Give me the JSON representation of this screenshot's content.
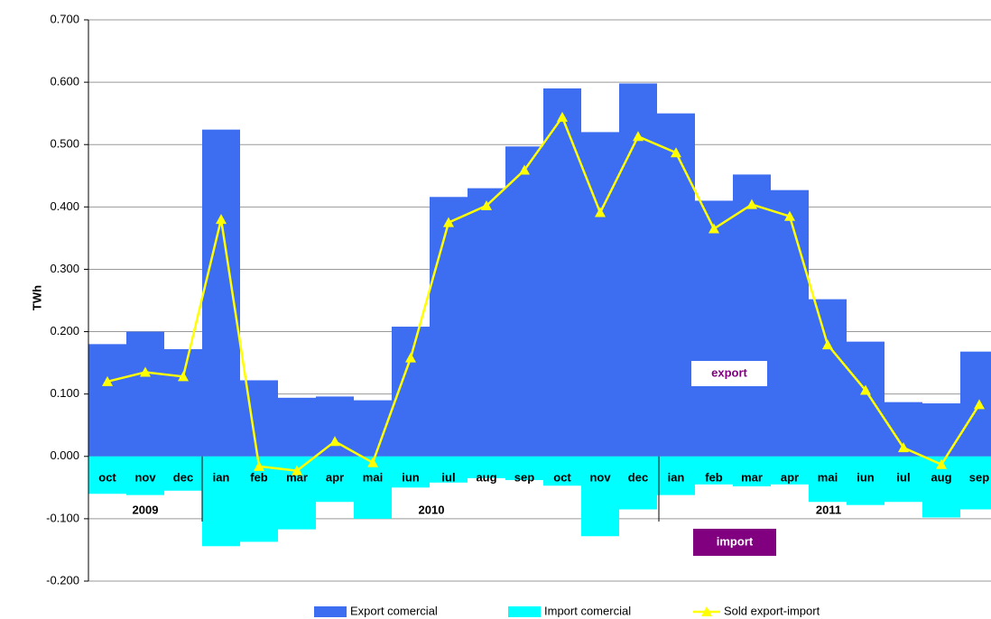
{
  "chart_data": {
    "type": "bar-line",
    "y_label": "TWh",
    "categories": [
      "oct",
      "nov",
      "dec",
      "ian",
      "feb",
      "mar",
      "apr",
      "mai",
      "iun",
      "iul",
      "aug",
      "sep",
      "oct",
      "nov",
      "dec",
      "ian",
      "feb",
      "mar",
      "apr",
      "mai",
      "iun",
      "iul",
      "aug",
      "sep"
    ],
    "year_labels": [
      "2009",
      "2010",
      "2011"
    ],
    "annotations": [
      "export",
      "import"
    ],
    "series": [
      {
        "name": "Export comercial",
        "type": "bar",
        "color": "#3d6ef2",
        "values": [
          0.18,
          0.2,
          0.172,
          0.524,
          0.122,
          0.094,
          0.096,
          0.09,
          0.208,
          0.416,
          0.43,
          0.497,
          0.59,
          0.52,
          0.598,
          0.55,
          0.41,
          0.452,
          0.427,
          0.252,
          0.184,
          0.087,
          0.085,
          0.168
        ]
      },
      {
        "name": "Import comercial",
        "type": "bar",
        "color": "#00ffff",
        "values": [
          -0.06,
          -0.062,
          -0.055,
          -0.144,
          -0.137,
          -0.117,
          -0.073,
          -0.1,
          -0.05,
          -0.042,
          -0.035,
          -0.038,
          -0.047,
          -0.128,
          -0.085,
          -0.062,
          -0.045,
          -0.048,
          -0.045,
          -0.073,
          -0.078,
          -0.073,
          -0.098,
          -0.085
        ]
      },
      {
        "name": "Sold export-import",
        "type": "line",
        "color": "#ffff00",
        "values": [
          0.12,
          0.135,
          0.128,
          0.38,
          -0.016,
          -0.023,
          0.024,
          -0.01,
          0.158,
          0.375,
          0.402,
          0.459,
          0.544,
          0.391,
          0.513,
          0.487,
          0.365,
          0.404,
          0.385,
          0.179,
          0.106,
          0.014,
          -0.013,
          0.083
        ]
      }
    ],
    "ylim": [
      -0.2,
      0.7
    ],
    "yticks": [
      {
        "value": -0.2,
        "label": "-0.200"
      },
      {
        "value": -0.1,
        "label": "-0.100"
      },
      {
        "value": 0,
        "label": "0.000"
      },
      {
        "value": 0.1,
        "label": "0.100"
      },
      {
        "value": 0.2,
        "label": "0.200"
      },
      {
        "value": 0.3,
        "label": "0.300"
      },
      {
        "value": 0.4,
        "label": "0.400"
      },
      {
        "value": 0.5,
        "label": "0.500"
      },
      {
        "value": 0.6,
        "label": "0.600"
      },
      {
        "value": 0.7,
        "label": "0.700"
      }
    ],
    "grid": true
  }
}
